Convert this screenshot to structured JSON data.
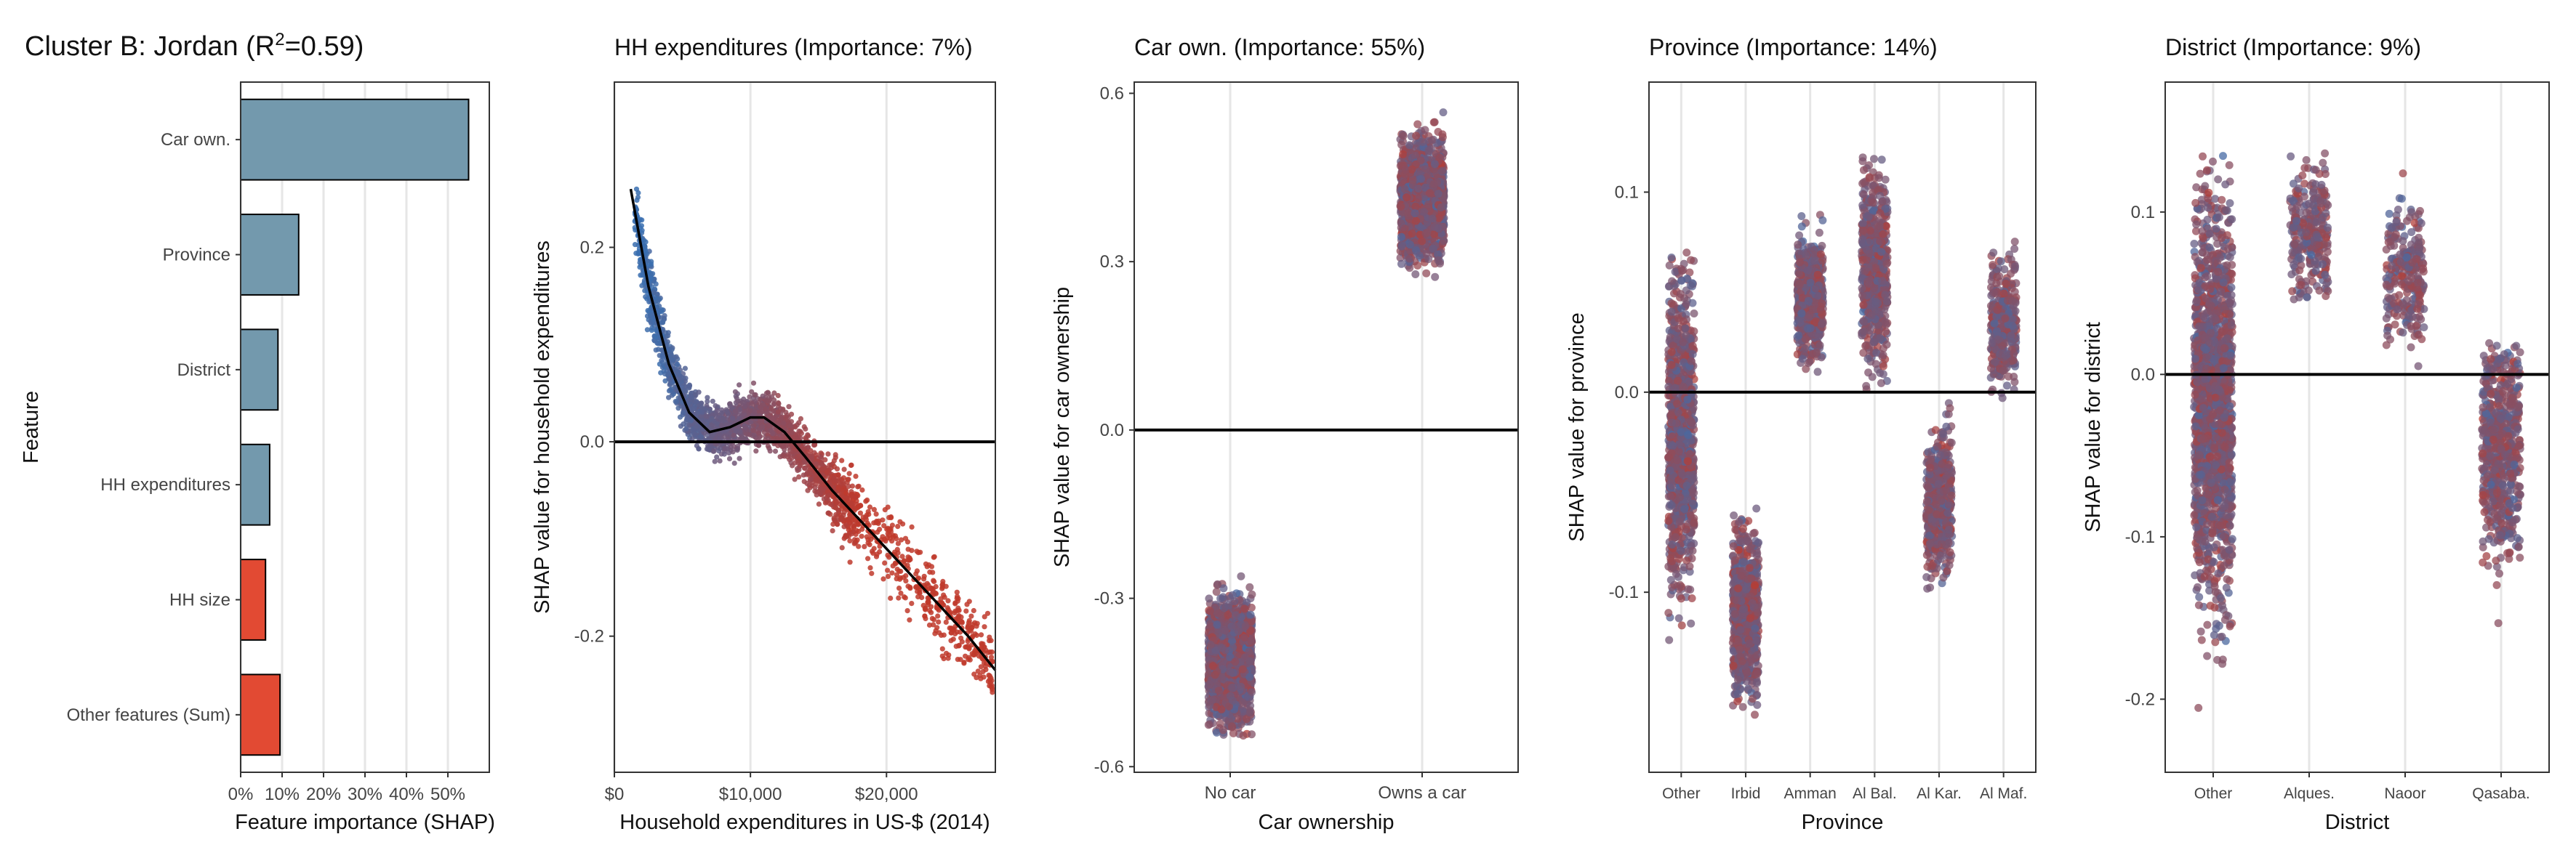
{
  "figure": {
    "title_prefix": "Cluster B: Jordan (R",
    "title_sup": "2",
    "title_suffix": "=0.59)",
    "colors": {
      "blue": "#3a6fb0",
      "red": "#c0392b",
      "bar_blue": "#7399ad",
      "bar_red": "#e24a33",
      "grid": "#e6e6e6"
    }
  },
  "chart_data": [
    {
      "id": "importance",
      "type": "bar",
      "orientation": "horizontal",
      "title": "",
      "xlabel": "Feature importance (SHAP)",
      "ylabel": "Feature",
      "categories": [
        "Car own.",
        "Province",
        "District",
        "HH expenditures",
        "HH size",
        "Other features (Sum)"
      ],
      "values": [
        55,
        14,
        9,
        7,
        6,
        9.5
      ],
      "bar_colors": [
        "#7399ad",
        "#7399ad",
        "#7399ad",
        "#7399ad",
        "#e24a33",
        "#e24a33"
      ],
      "xlim": [
        0,
        60
      ],
      "xticks": [
        0,
        10,
        20,
        30,
        40,
        50
      ],
      "xtick_labels": [
        "0%",
        "10%",
        "20%",
        "30%",
        "40%",
        "50%"
      ],
      "grid": true
    },
    {
      "id": "hh-exp",
      "type": "scatter",
      "title": "HH expenditures (Importance: 7%)",
      "xlabel": "Household expenditures in US-$ (2014)",
      "ylabel": "SHAP value for household expenditures",
      "xlim": [
        0,
        28000
      ],
      "ylim": [
        -0.34,
        0.37
      ],
      "xticks": [
        0,
        10000,
        20000
      ],
      "xtick_labels": [
        "$0",
        "$10,000",
        "$20,000"
      ],
      "yticks": [
        -0.2,
        0.0,
        0.2
      ],
      "ytick_labels": [
        "-0.2",
        "0.0",
        "0.2"
      ],
      "trend": [
        [
          1200,
          0.26
        ],
        [
          2500,
          0.16
        ],
        [
          4000,
          0.08
        ],
        [
          5500,
          0.03
        ],
        [
          7000,
          0.01
        ],
        [
          8500,
          0.015
        ],
        [
          10000,
          0.025
        ],
        [
          11000,
          0.025
        ],
        [
          12500,
          0.01
        ],
        [
          14000,
          -0.015
        ],
        [
          16000,
          -0.05
        ],
        [
          18000,
          -0.08
        ],
        [
          20000,
          -0.11
        ],
        [
          22000,
          -0.14
        ],
        [
          24000,
          -0.17
        ],
        [
          26000,
          -0.2
        ],
        [
          28000,
          -0.235
        ]
      ]
    },
    {
      "id": "car-own",
      "type": "scatter",
      "title": "Car own. (Importance: 55%)",
      "xlabel": "Car ownership",
      "ylabel": "SHAP value for car ownership",
      "categories": [
        "No car",
        "Owns a car"
      ],
      "ylim": [
        -0.61,
        0.62
      ],
      "yticks": [
        -0.6,
        -0.3,
        0.0,
        0.3,
        0.6
      ],
      "ytick_labels": [
        "-0.6",
        "-0.3",
        "0.0",
        "0.3",
        "0.6"
      ],
      "groups": [
        {
          "label": "No car",
          "min": -0.55,
          "max": -0.23,
          "center": -0.41
        },
        {
          "label": "Owns a car",
          "min": 0.25,
          "max": 0.57,
          "center": 0.41
        }
      ]
    },
    {
      "id": "province",
      "type": "scatter",
      "title": "Province (Importance: 14%)",
      "xlabel": "Province",
      "ylabel": "SHAP value for province",
      "categories": [
        "Other",
        "Irbid",
        "Amman",
        "Al Bal.",
        "Al Kar.",
        "Al Maf."
      ],
      "ylim": [
        -0.19,
        0.155
      ],
      "yticks": [
        -0.1,
        0.0,
        0.1
      ],
      "ytick_labels": [
        "-0.1",
        "0.0",
        "0.1"
      ],
      "groups": [
        {
          "label": "Other",
          "min": -0.17,
          "max": 0.07,
          "center": -0.02
        },
        {
          "label": "Irbid",
          "min": -0.17,
          "max": -0.05,
          "center": -0.11
        },
        {
          "label": "Amman",
          "min": 0.005,
          "max": 0.095,
          "center": 0.045
        },
        {
          "label": "Al Bal.",
          "min": 0.0,
          "max": 0.14,
          "center": 0.06
        },
        {
          "label": "Al Kar.",
          "min": -0.115,
          "max": -0.005,
          "center": -0.055
        },
        {
          "label": "Al Maf.",
          "min": -0.005,
          "max": 0.08,
          "center": 0.035
        }
      ]
    },
    {
      "id": "district",
      "type": "scatter",
      "title": "District (Importance: 9%)",
      "xlabel": "District",
      "ylabel": "SHAP value for district",
      "categories": [
        "Other",
        "Alques.",
        "Naoor",
        "Qasaba."
      ],
      "ylim": [
        -0.245,
        0.18
      ],
      "yticks": [
        -0.2,
        -0.1,
        0.0,
        0.1
      ],
      "ytick_labels": [
        "-0.2",
        "-0.1",
        "0.0",
        "0.1"
      ],
      "groups": [
        {
          "label": "Other",
          "min": -0.22,
          "max": 0.145,
          "center": -0.02
        },
        {
          "label": "Alques.",
          "min": 0.045,
          "max": 0.175,
          "center": 0.085
        },
        {
          "label": "Naoor",
          "min": 0.0,
          "max": 0.13,
          "center": 0.06
        },
        {
          "label": "Qasaba.",
          "min": -0.185,
          "max": 0.02,
          "center": -0.045
        }
      ]
    }
  ]
}
